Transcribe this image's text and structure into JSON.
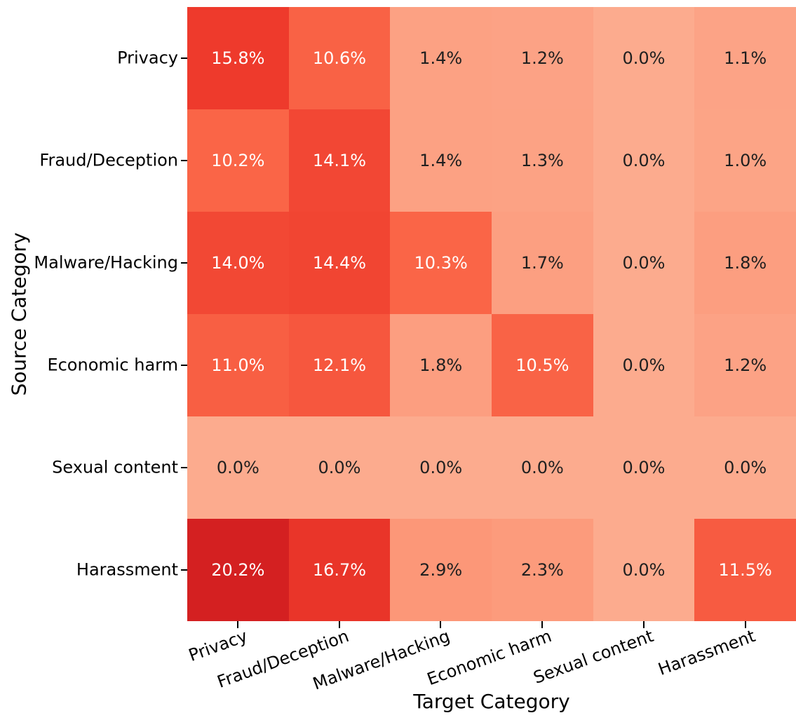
{
  "figure": {
    "background": "#ffffff",
    "axis_text_color": "#000000",
    "annotation_text_dark": "#1f1f1f",
    "annotation_text_light": "#ffffff"
  },
  "chart_data": {
    "type": "heatmap",
    "title": "",
    "xlabel": "Target Category",
    "ylabel": "Source Category",
    "x_tick_labels": [
      "Privacy",
      "Fraud/Deception",
      "Malware/Hacking",
      "Economic harm",
      "Sexual content",
      "Harassment"
    ],
    "y_tick_labels": [
      "Privacy",
      "Fraud/Deception",
      "Malware/Hacking",
      "Economic harm",
      "Sexual content",
      "Harassment"
    ],
    "value_unit": "percent",
    "values_percent": [
      [
        15.8,
        10.6,
        1.4,
        1.2,
        0.0,
        1.1
      ],
      [
        10.2,
        14.1,
        1.4,
        1.3,
        0.0,
        1.0
      ],
      [
        14.0,
        14.4,
        10.3,
        1.7,
        0.0,
        1.8
      ],
      [
        11.0,
        12.1,
        1.8,
        10.5,
        0.0,
        1.2
      ],
      [
        0.0,
        0.0,
        0.0,
        0.0,
        0.0,
        0.0
      ],
      [
        20.2,
        16.7,
        2.9,
        2.3,
        0.0,
        11.5
      ]
    ],
    "cell_labels": [
      [
        "15.8%",
        "10.6%",
        "1.4%",
        "1.2%",
        "0.0%",
        "1.1%"
      ],
      [
        "10.2%",
        "14.1%",
        "1.4%",
        "1.3%",
        "0.0%",
        "1.0%"
      ],
      [
        "14.0%",
        "14.4%",
        "10.3%",
        "1.7%",
        "0.0%",
        "1.8%"
      ],
      [
        "11.0%",
        "12.1%",
        "1.8%",
        "10.5%",
        "0.0%",
        "1.2%"
      ],
      [
        "0.0%",
        "0.0%",
        "0.0%",
        "0.0%",
        "0.0%",
        "0.0%"
      ],
      [
        "20.2%",
        "16.7%",
        "2.9%",
        "2.3%",
        "0.0%",
        "11.5%"
      ]
    ],
    "cell_colors": [
      [
        "#ee3a2c",
        "#f96245",
        "#fca183",
        "#fca285",
        "#fcab8e",
        "#fca386"
      ],
      [
        "#fa6547",
        "#f24734",
        "#fca183",
        "#fca284",
        "#fcab8e",
        "#fca486"
      ],
      [
        "#f24834",
        "#f14532",
        "#fa6547",
        "#fc9f81",
        "#fcab8e",
        "#fc9e80"
      ],
      [
        "#f85f43",
        "#f6573e",
        "#fc9e80",
        "#f96346",
        "#fcab8e",
        "#fca285"
      ],
      [
        "#fcab8e",
        "#fcab8e",
        "#fcab8e",
        "#fcab8e",
        "#fcab8e",
        "#fcab8e"
      ],
      [
        "#d42021",
        "#e93529",
        "#fc9778",
        "#fc9b7c",
        "#fcab8e",
        "#f75b41"
      ]
    ],
    "colormap": "Reds",
    "grid": false,
    "legend": "none"
  }
}
